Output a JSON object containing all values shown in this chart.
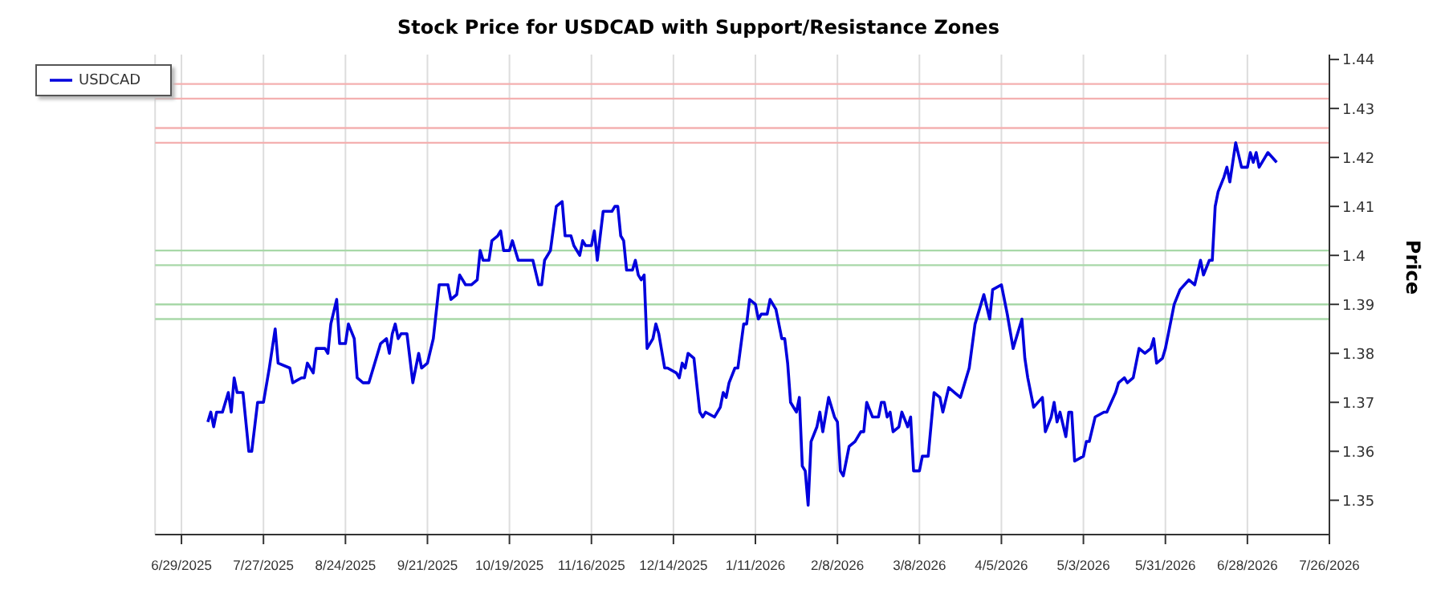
{
  "chart_data": {
    "type": "line",
    "title": "Stock Price for USDCAD with Support/Resistance Zones",
    "ylabel": "Price",
    "xlim": [
      "2025-06-20",
      "2026-07-26"
    ],
    "xticks": [
      {
        "value": "2025-06-29",
        "label": "6/29/2025"
      },
      {
        "value": "2025-07-27",
        "label": "7/27/2025"
      },
      {
        "value": "2025-08-24",
        "label": "8/24/2025"
      },
      {
        "value": "2025-09-21",
        "label": "9/21/2025"
      },
      {
        "value": "2025-10-19",
        "label": "10/19/2025"
      },
      {
        "value": "2025-11-16",
        "label": "11/16/2025"
      },
      {
        "value": "2025-12-14",
        "label": "12/14/2025"
      },
      {
        "value": "2026-01-11",
        "label": "1/11/2026"
      },
      {
        "value": "2026-02-08",
        "label": "2/8/2026"
      },
      {
        "value": "2026-03-08",
        "label": "3/8/2026"
      },
      {
        "value": "2026-04-05",
        "label": "4/5/2026"
      },
      {
        "value": "2026-05-03",
        "label": "5/3/2026"
      },
      {
        "value": "2026-05-31",
        "label": "5/31/2026"
      },
      {
        "value": "2026-06-28",
        "label": "6/28/2026"
      },
      {
        "value": "2026-07-26",
        "label": "7/26/2026"
      }
    ],
    "ylim": [
      1.343,
      1.441
    ],
    "yticks": [
      1.35,
      1.36,
      1.37,
      1.38,
      1.39,
      1.4,
      1.41,
      1.42,
      1.43,
      1.44
    ],
    "grid": "x",
    "legend": "top left",
    "marker": "none",
    "line_style": "solid",
    "ref_lines": [
      {
        "axis": "y",
        "value": 1.435,
        "color": "#f4b0b0"
      },
      {
        "axis": "y",
        "value": 1.432,
        "color": "#f4b0b0"
      },
      {
        "axis": "y",
        "value": 1.426,
        "color": "#f4b0b0"
      },
      {
        "axis": "y",
        "value": 1.423,
        "color": "#f4b0b0"
      },
      {
        "axis": "y",
        "value": 1.401,
        "color": "#a8d8a8"
      },
      {
        "axis": "y",
        "value": 1.398,
        "color": "#a8d8a8"
      },
      {
        "axis": "y",
        "value": 1.39,
        "color": "#a8d8a8"
      },
      {
        "axis": "y",
        "value": 1.387,
        "color": "#a8d8a8"
      }
    ],
    "x": [
      "2025-07-08",
      "2025-07-09",
      "2025-07-10",
      "2025-07-11",
      "2025-07-13",
      "2025-07-15",
      "2025-07-16",
      "2025-07-17",
      "2025-07-18",
      "2025-07-20",
      "2025-07-22",
      "2025-07-23",
      "2025-07-25",
      "2025-07-27",
      "2025-07-29",
      "2025-07-31",
      "2025-08-01",
      "2025-08-05",
      "2025-08-06",
      "2025-08-09",
      "2025-08-10",
      "2025-08-11",
      "2025-08-13",
      "2025-08-14",
      "2025-08-17",
      "2025-08-18",
      "2025-08-19",
      "2025-08-21",
      "2025-08-22",
      "2025-08-24",
      "2025-08-25",
      "2025-08-27",
      "2025-08-28",
      "2025-08-30",
      "2025-09-01",
      "2025-09-03",
      "2025-09-05",
      "2025-09-07",
      "2025-09-08",
      "2025-09-09",
      "2025-09-10",
      "2025-09-11",
      "2025-09-12",
      "2025-09-14",
      "2025-09-16",
      "2025-09-18",
      "2025-09-19",
      "2025-09-21",
      "2025-09-23",
      "2025-09-25",
      "2025-09-28",
      "2025-09-29",
      "2025-10-01",
      "2025-10-02",
      "2025-10-04",
      "2025-10-06",
      "2025-10-08",
      "2025-10-09",
      "2025-10-10",
      "2025-10-12",
      "2025-10-13",
      "2025-10-15",
      "2025-10-16",
      "2025-10-17",
      "2025-10-19",
      "2025-10-20",
      "2025-10-22",
      "2025-10-25",
      "2025-10-27",
      "2025-10-29",
      "2025-10-30",
      "2025-10-31",
      "2025-11-02",
      "2025-11-04",
      "2025-11-06",
      "2025-11-07",
      "2025-11-09",
      "2025-11-10",
      "2025-11-12",
      "2025-11-13",
      "2025-11-14",
      "2025-11-16",
      "2025-11-17",
      "2025-11-18",
      "2025-11-20",
      "2025-11-23",
      "2025-11-24",
      "2025-11-25",
      "2025-11-26",
      "2025-11-27",
      "2025-11-28",
      "2025-11-30",
      "2025-12-01",
      "2025-12-02",
      "2025-12-03",
      "2025-12-04",
      "2025-12-05",
      "2025-12-07",
      "2025-12-08",
      "2025-12-09",
      "2025-12-11",
      "2025-12-12",
      "2025-12-15",
      "2025-12-16",
      "2025-12-17",
      "2025-12-18",
      "2025-12-19",
      "2025-12-21",
      "2025-12-23",
      "2025-12-24",
      "2025-12-25",
      "2025-12-28",
      "2025-12-30",
      "2025-12-31",
      "2026-01-01",
      "2026-01-02",
      "2026-01-04",
      "2026-01-05",
      "2026-01-07",
      "2026-01-08",
      "2026-01-09",
      "2026-01-11",
      "2026-01-12",
      "2026-01-13",
      "2026-01-15",
      "2026-01-16",
      "2026-01-18",
      "2026-01-20",
      "2026-01-21",
      "2026-01-22",
      "2026-01-23",
      "2026-01-25",
      "2026-01-26",
      "2026-01-27",
      "2026-01-28",
      "2026-01-29",
      "2026-01-30",
      "2026-02-01",
      "2026-02-02",
      "2026-02-03",
      "2026-02-05",
      "2026-02-07",
      "2026-02-08",
      "2026-02-09",
      "2026-02-10",
      "2026-02-12",
      "2026-02-14",
      "2026-02-16",
      "2026-02-17",
      "2026-02-18",
      "2026-02-20",
      "2026-02-22",
      "2026-02-23",
      "2026-02-24",
      "2026-02-25",
      "2026-02-26",
      "2026-02-27",
      "2026-03-01",
      "2026-03-02",
      "2026-03-04",
      "2026-03-05",
      "2026-03-06",
      "2026-03-08",
      "2026-03-09",
      "2026-03-11",
      "2026-03-13",
      "2026-03-15",
      "2026-03-16",
      "2026-03-18",
      "2026-03-20",
      "2026-03-22",
      "2026-03-25",
      "2026-03-27",
      "2026-03-29",
      "2026-03-30",
      "2026-04-01",
      "2026-04-02",
      "2026-04-05",
      "2026-04-07",
      "2026-04-09",
      "2026-04-12",
      "2026-04-13",
      "2026-04-14",
      "2026-04-16",
      "2026-04-19",
      "2026-04-20",
      "2026-04-22",
      "2026-04-23",
      "2026-04-24",
      "2026-04-25",
      "2026-04-27",
      "2026-04-28",
      "2026-04-29",
      "2026-04-30",
      "2026-05-03",
      "2026-05-04",
      "2026-05-05",
      "2026-05-07",
      "2026-05-10",
      "2026-05-11",
      "2026-05-14",
      "2026-05-15",
      "2026-05-17",
      "2026-05-18",
      "2026-05-20",
      "2026-05-22",
      "2026-05-24",
      "2026-05-26",
      "2026-05-27",
      "2026-05-28",
      "2026-05-30",
      "2026-05-31",
      "2026-06-01",
      "2026-06-03",
      "2026-06-05",
      "2026-06-08",
      "2026-06-10",
      "2026-06-12",
      "2026-06-13",
      "2026-06-15",
      "2026-06-16",
      "2026-06-17",
      "2026-06-18",
      "2026-06-20",
      "2026-06-21",
      "2026-06-22",
      "2026-06-24",
      "2026-06-26",
      "2026-06-28",
      "2026-06-29",
      "2026-06-30",
      "2026-07-01",
      "2026-07-02",
      "2026-07-04",
      "2026-07-05",
      "2026-07-08"
    ],
    "series": [
      {
        "name": "USDCAD",
        "color": "#0000dd",
        "values": [
          1.366,
          1.368,
          1.365,
          1.368,
          1.368,
          1.372,
          1.368,
          1.375,
          1.372,
          1.372,
          1.36,
          1.36,
          1.37,
          1.37,
          1.377,
          1.385,
          1.378,
          1.377,
          1.374,
          1.375,
          1.375,
          1.378,
          1.376,
          1.381,
          1.381,
          1.38,
          1.386,
          1.391,
          1.382,
          1.382,
          1.386,
          1.383,
          1.375,
          1.374,
          1.374,
          1.378,
          1.382,
          1.383,
          1.38,
          1.384,
          1.386,
          1.383,
          1.384,
          1.384,
          1.374,
          1.38,
          1.377,
          1.378,
          1.383,
          1.394,
          1.394,
          1.391,
          1.392,
          1.396,
          1.394,
          1.394,
          1.395,
          1.401,
          1.399,
          1.399,
          1.403,
          1.404,
          1.405,
          1.401,
          1.401,
          1.403,
          1.399,
          1.399,
          1.399,
          1.394,
          1.394,
          1.399,
          1.401,
          1.41,
          1.411,
          1.404,
          1.404,
          1.402,
          1.4,
          1.403,
          1.402,
          1.402,
          1.405,
          1.399,
          1.409,
          1.409,
          1.41,
          1.41,
          1.404,
          1.403,
          1.397,
          1.397,
          1.399,
          1.396,
          1.395,
          1.396,
          1.381,
          1.383,
          1.386,
          1.384,
          1.377,
          1.377,
          1.376,
          1.375,
          1.378,
          1.377,
          1.38,
          1.379,
          1.368,
          1.367,
          1.368,
          1.367,
          1.369,
          1.372,
          1.371,
          1.374,
          1.377,
          1.377,
          1.386,
          1.386,
          1.391,
          1.39,
          1.387,
          1.388,
          1.388,
          1.391,
          1.389,
          1.383,
          1.383,
          1.378,
          1.37,
          1.368,
          1.371,
          1.357,
          1.356,
          1.349,
          1.362,
          1.365,
          1.368,
          1.364,
          1.371,
          1.367,
          1.366,
          1.356,
          1.355,
          1.361,
          1.362,
          1.364,
          1.364,
          1.37,
          1.367,
          1.367,
          1.37,
          1.37,
          1.367,
          1.368,
          1.364,
          1.365,
          1.368,
          1.365,
          1.367,
          1.356,
          1.356,
          1.359,
          1.359,
          1.372,
          1.371,
          1.368,
          1.373,
          1.372,
          1.371,
          1.377,
          1.386,
          1.39,
          1.392,
          1.387,
          1.393,
          1.394,
          1.388,
          1.381,
          1.387,
          1.379,
          1.375,
          1.369,
          1.371,
          1.364,
          1.367,
          1.37,
          1.366,
          1.368,
          1.363,
          1.368,
          1.368,
          1.358,
          1.359,
          1.362,
          1.362,
          1.367,
          1.368,
          1.368,
          1.372,
          1.374,
          1.375,
          1.374,
          1.375,
          1.381,
          1.38,
          1.381,
          1.383,
          1.378,
          1.379,
          1.381,
          1.384,
          1.39,
          1.393,
          1.395,
          1.394,
          1.399,
          1.396,
          1.399,
          1.399,
          1.41,
          1.413,
          1.416,
          1.418,
          1.415,
          1.423,
          1.418,
          1.418,
          1.421,
          1.419,
          1.421,
          1.418,
          1.42,
          1.421,
          1.419
        ]
      }
    ]
  }
}
